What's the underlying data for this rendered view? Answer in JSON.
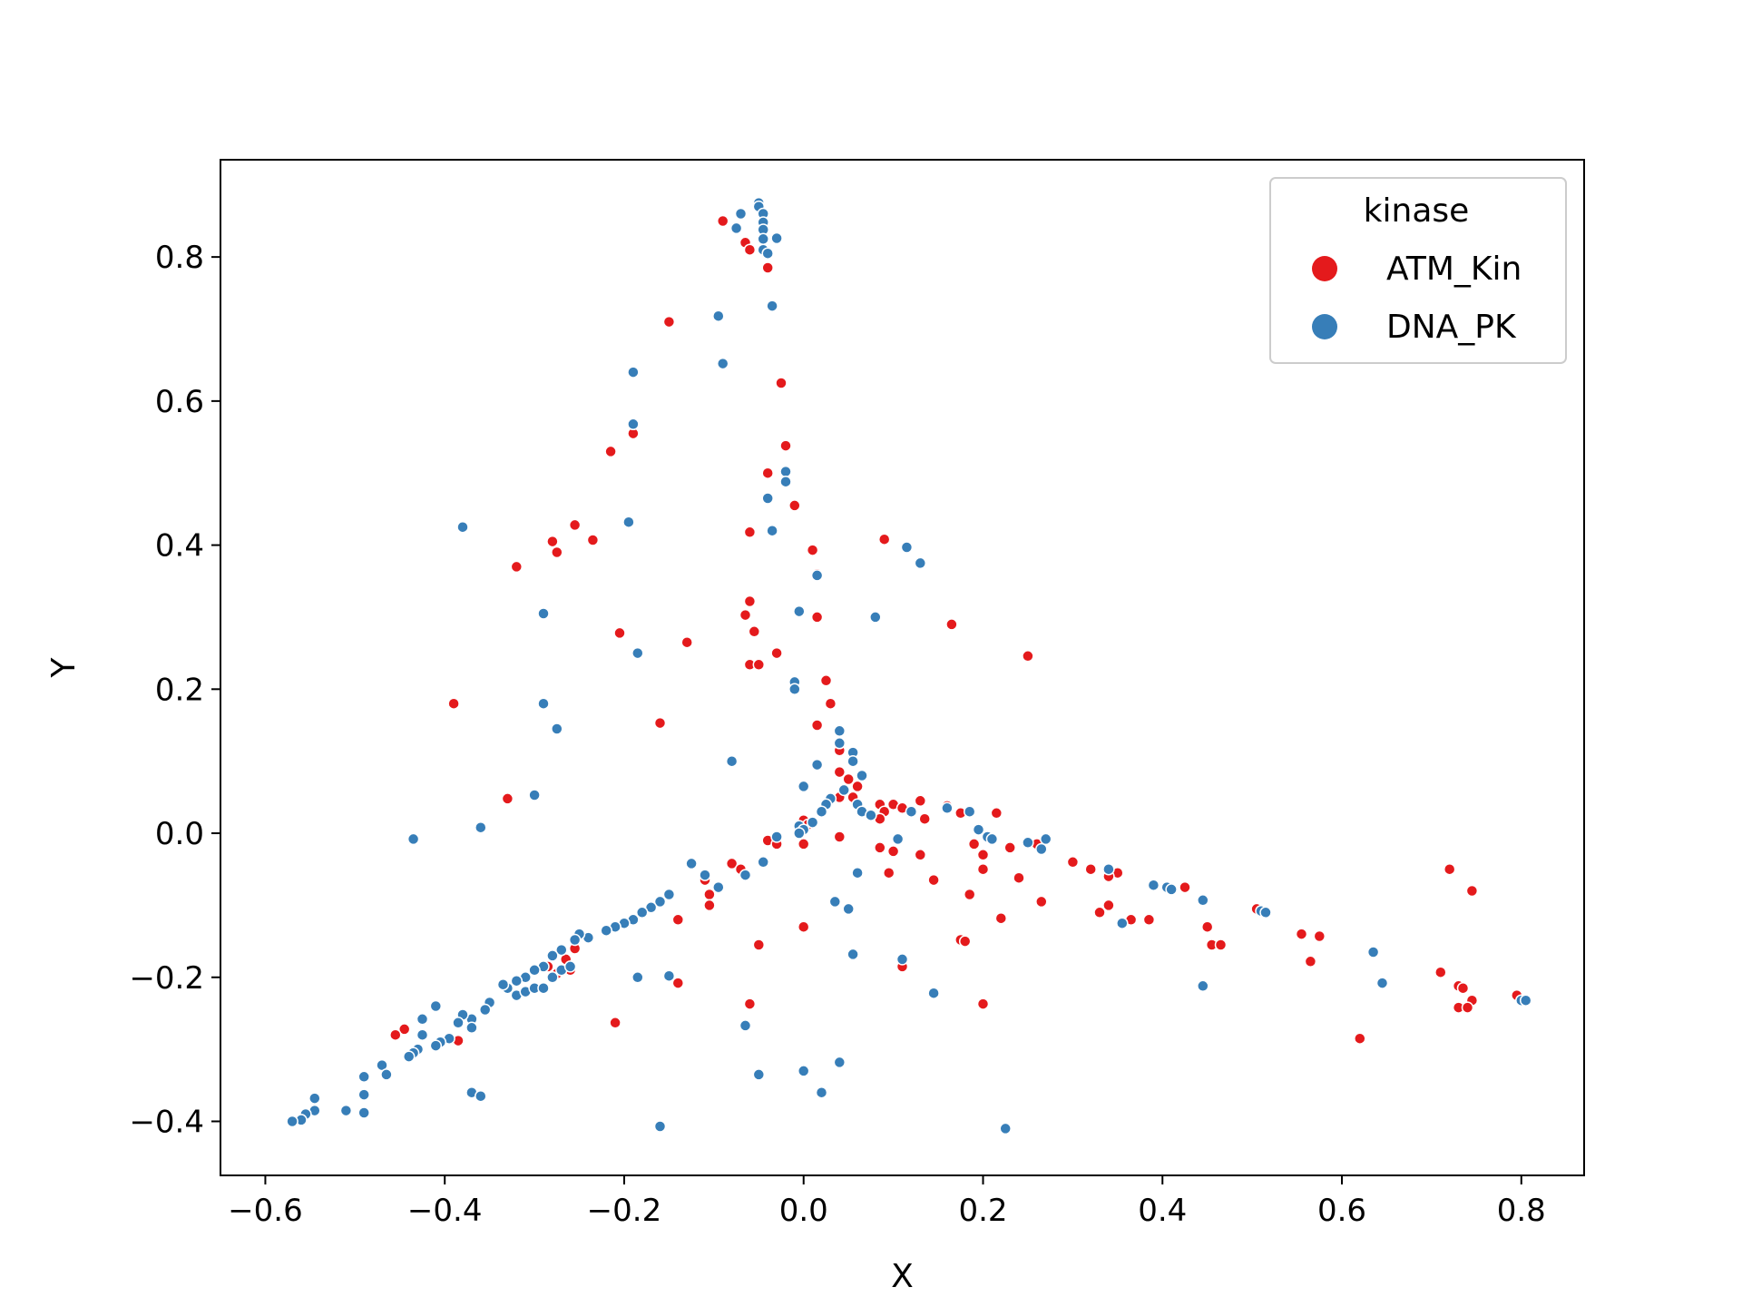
{
  "chart_data": {
    "type": "scatter",
    "title": "",
    "xlabel": "X",
    "ylabel": "Y",
    "xlim": [
      -0.65,
      0.87
    ],
    "ylim": [
      -0.475,
      0.935
    ],
    "xticks": [
      -0.6,
      -0.4,
      -0.2,
      0.0,
      0.2,
      0.4,
      0.6,
      0.8
    ],
    "xtick_labels": [
      "−0.6",
      "−0.4",
      "−0.2",
      "0.0",
      "0.2",
      "0.4",
      "0.6",
      "0.8"
    ],
    "yticks": [
      -0.4,
      -0.2,
      0.0,
      0.2,
      0.4,
      0.6,
      0.8
    ],
    "ytick_labels": [
      "−0.4",
      "−0.2",
      "0.0",
      "0.2",
      "0.4",
      "0.6",
      "0.8"
    ],
    "grid": false,
    "legend": {
      "title": "kinase",
      "placement": "top-right"
    },
    "series": [
      {
        "name": "ATM_Kin",
        "color": "#e41a1c",
        "points": [
          [
            -0.09,
            0.85
          ],
          [
            -0.065,
            0.82
          ],
          [
            -0.06,
            0.81
          ],
          [
            -0.04,
            0.785
          ],
          [
            -0.15,
            0.71
          ],
          [
            -0.025,
            0.625
          ],
          [
            -0.02,
            0.538
          ],
          [
            -0.19,
            0.555
          ],
          [
            -0.215,
            0.53
          ],
          [
            -0.04,
            0.5
          ],
          [
            -0.01,
            0.455
          ],
          [
            -0.06,
            0.418
          ],
          [
            -0.255,
            0.428
          ],
          [
            -0.28,
            0.405
          ],
          [
            -0.235,
            0.407
          ],
          [
            -0.275,
            0.39
          ],
          [
            -0.32,
            0.37
          ],
          [
            0.09,
            0.408
          ],
          [
            0.01,
            0.393
          ],
          [
            0.015,
            0.36
          ],
          [
            -0.06,
            0.322
          ],
          [
            -0.065,
            0.303
          ],
          [
            0.015,
            0.3
          ],
          [
            0.165,
            0.29
          ],
          [
            0.25,
            0.246
          ],
          [
            -0.205,
            0.278
          ],
          [
            -0.055,
            0.28
          ],
          [
            -0.13,
            0.265
          ],
          [
            -0.03,
            0.25
          ],
          [
            -0.06,
            0.234
          ],
          [
            -0.05,
            0.234
          ],
          [
            0.025,
            0.212
          ],
          [
            0.03,
            0.18
          ],
          [
            -0.39,
            0.18
          ],
          [
            -0.16,
            0.153
          ],
          [
            0.015,
            0.15
          ],
          [
            0.04,
            0.115
          ],
          [
            -0.33,
            0.048
          ],
          [
            0.04,
            0.085
          ],
          [
            0.05,
            0.075
          ],
          [
            0.06,
            0.065
          ],
          [
            0.04,
            0.05
          ],
          [
            0.055,
            0.05
          ],
          [
            0.085,
            0.04
          ],
          [
            0.1,
            0.04
          ],
          [
            0.11,
            0.035
          ],
          [
            0.13,
            0.045
          ],
          [
            0.16,
            0.038
          ],
          [
            0.09,
            0.03
          ],
          [
            0.135,
            0.02
          ],
          [
            0.175,
            0.028
          ],
          [
            0.215,
            0.028
          ],
          [
            0.04,
            -0.005
          ],
          [
            0.085,
            0.02
          ],
          [
            0.0,
            0.018
          ],
          [
            0.005,
            0.012
          ],
          [
            -0.04,
            -0.01
          ],
          [
            -0.03,
            -0.015
          ],
          [
            0.0,
            -0.015
          ],
          [
            0.085,
            -0.02
          ],
          [
            0.1,
            -0.025
          ],
          [
            0.13,
            -0.03
          ],
          [
            0.19,
            -0.015
          ],
          [
            0.2,
            -0.03
          ],
          [
            0.23,
            -0.02
          ],
          [
            0.26,
            -0.015
          ],
          [
            0.3,
            -0.04
          ],
          [
            0.32,
            -0.05
          ],
          [
            0.35,
            -0.055
          ],
          [
            0.34,
            -0.06
          ],
          [
            -0.08,
            -0.042
          ],
          [
            -0.07,
            -0.05
          ],
          [
            -0.11,
            -0.065
          ],
          [
            -0.105,
            -0.085
          ],
          [
            -0.105,
            -0.1
          ],
          [
            0.095,
            -0.055
          ],
          [
            0.145,
            -0.065
          ],
          [
            0.2,
            -0.05
          ],
          [
            0.24,
            -0.062
          ],
          [
            0.185,
            -0.085
          ],
          [
            0.265,
            -0.095
          ],
          [
            0.33,
            -0.11
          ],
          [
            0.34,
            -0.1
          ],
          [
            0.365,
            -0.12
          ],
          [
            0.385,
            -0.12
          ],
          [
            0.41,
            -0.078
          ],
          [
            0.425,
            -0.075
          ],
          [
            0.505,
            -0.105
          ],
          [
            0.45,
            -0.13
          ],
          [
            0.455,
            -0.155
          ],
          [
            0.465,
            -0.155
          ],
          [
            0.555,
            -0.14
          ],
          [
            0.575,
            -0.143
          ],
          [
            0.565,
            -0.178
          ],
          [
            0.72,
            -0.05
          ],
          [
            0.745,
            -0.08
          ],
          [
            0.71,
            -0.193
          ],
          [
            0.73,
            -0.212
          ],
          [
            0.735,
            -0.215
          ],
          [
            0.745,
            -0.232
          ],
          [
            0.73,
            -0.242
          ],
          [
            0.74,
            -0.242
          ],
          [
            0.795,
            -0.225
          ],
          [
            0.62,
            -0.285
          ],
          [
            0.0,
            -0.13
          ],
          [
            -0.05,
            -0.155
          ],
          [
            0.175,
            -0.148
          ],
          [
            0.18,
            -0.15
          ],
          [
            0.22,
            -0.118
          ],
          [
            0.11,
            -0.185
          ],
          [
            0.2,
            -0.237
          ],
          [
            -0.06,
            -0.237
          ],
          [
            -0.14,
            -0.12
          ],
          [
            -0.14,
            -0.208
          ],
          [
            -0.21,
            -0.263
          ],
          [
            -0.255,
            -0.16
          ],
          [
            -0.265,
            -0.175
          ],
          [
            -0.26,
            -0.19
          ],
          [
            -0.285,
            -0.185
          ],
          [
            -0.275,
            -0.195
          ],
          [
            -0.445,
            -0.272
          ],
          [
            -0.455,
            -0.28
          ],
          [
            -0.385,
            -0.288
          ]
        ]
      },
      {
        "name": "DNA_PK",
        "color": "#377eb8",
        "points": [
          [
            -0.05,
            0.875
          ],
          [
            -0.05,
            0.87
          ],
          [
            -0.045,
            0.86
          ],
          [
            -0.045,
            0.848
          ],
          [
            -0.07,
            0.86
          ],
          [
            -0.075,
            0.84
          ],
          [
            -0.045,
            0.838
          ],
          [
            -0.045,
            0.825
          ],
          [
            -0.03,
            0.826
          ],
          [
            -0.045,
            0.81
          ],
          [
            -0.04,
            0.805
          ],
          [
            -0.035,
            0.732
          ],
          [
            -0.095,
            0.718
          ],
          [
            -0.09,
            0.652
          ],
          [
            -0.19,
            0.64
          ],
          [
            -0.19,
            0.568
          ],
          [
            -0.02,
            0.502
          ],
          [
            -0.02,
            0.488
          ],
          [
            -0.04,
            0.465
          ],
          [
            -0.035,
            0.42
          ],
          [
            -0.195,
            0.432
          ],
          [
            -0.38,
            0.425
          ],
          [
            0.115,
            0.397
          ],
          [
            0.13,
            0.375
          ],
          [
            0.015,
            0.358
          ],
          [
            -0.005,
            0.308
          ],
          [
            0.08,
            0.3
          ],
          [
            -0.29,
            0.305
          ],
          [
            -0.185,
            0.25
          ],
          [
            -0.01,
            0.21
          ],
          [
            -0.01,
            0.2
          ],
          [
            -0.29,
            0.18
          ],
          [
            -0.275,
            0.145
          ],
          [
            0.04,
            0.142
          ],
          [
            0.04,
            0.125
          ],
          [
            0.055,
            0.112
          ],
          [
            0.055,
            0.1
          ],
          [
            0.015,
            0.095
          ],
          [
            0.065,
            0.08
          ],
          [
            -0.08,
            0.1
          ],
          [
            -0.3,
            0.053
          ],
          [
            -0.36,
            0.008
          ],
          [
            -0.435,
            -0.008
          ],
          [
            0.0,
            0.065
          ],
          [
            0.03,
            0.048
          ],
          [
            0.025,
            0.04
          ],
          [
            0.045,
            0.06
          ],
          [
            0.06,
            0.04
          ],
          [
            0.065,
            0.03
          ],
          [
            0.075,
            0.025
          ],
          [
            0.12,
            0.03
          ],
          [
            0.16,
            0.035
          ],
          [
            0.185,
            0.03
          ],
          [
            0.195,
            0.005
          ],
          [
            0.205,
            -0.005
          ],
          [
            0.21,
            -0.008
          ],
          [
            0.25,
            -0.013
          ],
          [
            0.265,
            -0.022
          ],
          [
            0.27,
            -0.008
          ],
          [
            0.34,
            -0.05
          ],
          [
            0.39,
            -0.072
          ],
          [
            0.405,
            -0.075
          ],
          [
            0.41,
            -0.078
          ],
          [
            0.445,
            -0.093
          ],
          [
            0.51,
            -0.108
          ],
          [
            0.515,
            -0.11
          ],
          [
            0.355,
            -0.125
          ],
          [
            0.635,
            -0.165
          ],
          [
            0.645,
            -0.208
          ],
          [
            0.8,
            -0.232
          ],
          [
            0.805,
            -0.232
          ],
          [
            0.445,
            -0.212
          ],
          [
            -0.005,
            0.01
          ],
          [
            0.0,
            0.005
          ],
          [
            -0.005,
            0.0
          ],
          [
            0.01,
            0.015
          ],
          [
            0.02,
            0.03
          ],
          [
            -0.03,
            -0.005
          ],
          [
            -0.045,
            -0.04
          ],
          [
            -0.065,
            -0.058
          ],
          [
            0.105,
            -0.008
          ],
          [
            0.06,
            -0.055
          ],
          [
            0.035,
            -0.095
          ],
          [
            0.05,
            -0.105
          ],
          [
            -0.125,
            -0.042
          ],
          [
            -0.11,
            -0.058
          ],
          [
            -0.095,
            -0.075
          ],
          [
            -0.15,
            -0.085
          ],
          [
            -0.16,
            -0.095
          ],
          [
            -0.17,
            -0.103
          ],
          [
            -0.18,
            -0.11
          ],
          [
            -0.19,
            -0.12
          ],
          [
            -0.2,
            -0.125
          ],
          [
            -0.21,
            -0.13
          ],
          [
            -0.22,
            -0.135
          ],
          [
            -0.24,
            -0.145
          ],
          [
            -0.25,
            -0.14
          ],
          [
            -0.255,
            -0.148
          ],
          [
            -0.27,
            -0.162
          ],
          [
            -0.28,
            -0.17
          ],
          [
            -0.29,
            -0.185
          ],
          [
            -0.3,
            -0.19
          ],
          [
            -0.31,
            -0.2
          ],
          [
            -0.32,
            -0.205
          ],
          [
            -0.33,
            -0.215
          ],
          [
            -0.335,
            -0.21
          ],
          [
            -0.32,
            -0.225
          ],
          [
            -0.31,
            -0.22
          ],
          [
            -0.3,
            -0.215
          ],
          [
            -0.29,
            -0.215
          ],
          [
            -0.28,
            -0.2
          ],
          [
            -0.27,
            -0.19
          ],
          [
            -0.26,
            -0.185
          ],
          [
            -0.35,
            -0.235
          ],
          [
            -0.355,
            -0.245
          ],
          [
            -0.37,
            -0.258
          ],
          [
            -0.38,
            -0.252
          ],
          [
            -0.385,
            -0.263
          ],
          [
            -0.41,
            -0.24
          ],
          [
            -0.425,
            -0.258
          ],
          [
            -0.37,
            -0.27
          ],
          [
            -0.395,
            -0.285
          ],
          [
            -0.405,
            -0.29
          ],
          [
            -0.41,
            -0.295
          ],
          [
            -0.425,
            -0.28
          ],
          [
            -0.43,
            -0.3
          ],
          [
            -0.435,
            -0.305
          ],
          [
            -0.44,
            -0.31
          ],
          [
            -0.47,
            -0.322
          ],
          [
            -0.465,
            -0.335
          ],
          [
            -0.49,
            -0.338
          ],
          [
            -0.49,
            -0.363
          ],
          [
            -0.545,
            -0.368
          ],
          [
            -0.545,
            -0.385
          ],
          [
            -0.555,
            -0.39
          ],
          [
            -0.56,
            -0.398
          ],
          [
            -0.57,
            -0.4
          ],
          [
            -0.51,
            -0.385
          ],
          [
            -0.49,
            -0.388
          ],
          [
            -0.37,
            -0.36
          ],
          [
            -0.36,
            -0.365
          ],
          [
            -0.185,
            -0.2
          ],
          [
            -0.15,
            -0.198
          ],
          [
            -0.16,
            -0.407
          ],
          [
            -0.065,
            -0.267
          ],
          [
            -0.05,
            -0.335
          ],
          [
            0.0,
            -0.33
          ],
          [
            0.02,
            -0.36
          ],
          [
            0.04,
            -0.318
          ],
          [
            0.055,
            -0.168
          ],
          [
            0.11,
            -0.175
          ],
          [
            0.145,
            -0.222
          ],
          [
            0.225,
            -0.41
          ]
        ]
      }
    ]
  }
}
